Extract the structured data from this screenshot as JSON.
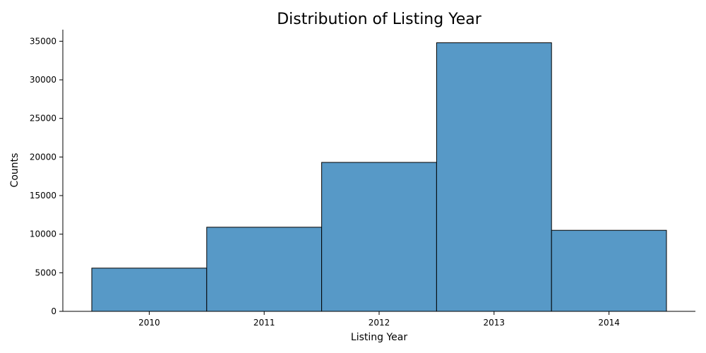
{
  "chart_data": {
    "type": "bar",
    "title": "Distribution of Listing Year",
    "xlabel": "Listing Year",
    "ylabel": "Counts",
    "categories": [
      "2010",
      "2011",
      "2012",
      "2013",
      "2014"
    ],
    "values": [
      5600,
      10900,
      19300,
      34800,
      10500
    ],
    "ylim": [
      0,
      36500
    ],
    "yticks": [
      0,
      5000,
      10000,
      15000,
      20000,
      25000,
      30000,
      35000
    ],
    "ytick_labels": [
      "0",
      "5000",
      "10000",
      "15000",
      "20000",
      "25000",
      "30000",
      "35000"
    ],
    "bar_color": "#5799c7",
    "grid": false,
    "legend": "none"
  }
}
